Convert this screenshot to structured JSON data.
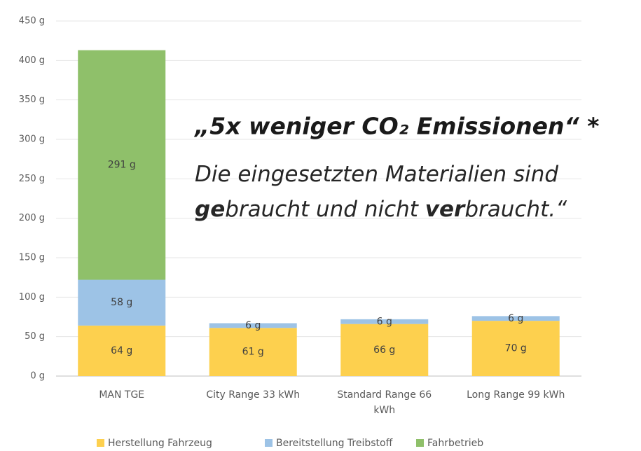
{
  "chart_data": {
    "type": "stacked_bar",
    "categories": [
      "MAN TGE",
      "City Range 33 kWh",
      "Standard Range 66 kWh",
      "Long Range 99 kWh"
    ],
    "series": [
      {
        "name": "Herstellung Fahrzeug",
        "color": "#fdd04e",
        "values": [
          64,
          61,
          66,
          70
        ],
        "value_labels": [
          "64 g",
          "61 g",
          "66 g",
          "70 g"
        ]
      },
      {
        "name": "Bereitstellung Treibstoff",
        "color": "#9dc3e6",
        "values": [
          58,
          6,
          6,
          6
        ],
        "value_labels": [
          "58 g",
          "6 g",
          "6 g",
          "6 g"
        ]
      },
      {
        "name": "Fahrbetrieb",
        "color": "#8fc06a",
        "values": [
          291,
          null,
          null,
          null
        ],
        "value_labels": [
          "291 g",
          null,
          null,
          null
        ]
      }
    ],
    "ylim": [
      0,
      450
    ],
    "yticks": [
      {
        "value": 0,
        "label": "0 g"
      },
      {
        "value": 50,
        "label": "50 g"
      },
      {
        "value": 100,
        "label": "100 g"
      },
      {
        "value": 150,
        "label": "150 g"
      },
      {
        "value": 200,
        "label": "200 g"
      },
      {
        "value": 250,
        "label": "250 g"
      },
      {
        "value": 300,
        "label": "300 g"
      },
      {
        "value": 350,
        "label": "350 g"
      },
      {
        "value": 400,
        "label": "400 g"
      },
      {
        "value": 450,
        "label": "450 g"
      }
    ],
    "grid": true,
    "legend": "bottom",
    "annotation_title": "„5x weniger CO₂ Emissionen“ *",
    "annotation_body": [
      [
        {
          "text": "Die eingesetzten Materialien sind"
        }
      ],
      [
        {
          "text": "ge",
          "bold": true
        },
        {
          "text": "braucht und nicht "
        },
        {
          "text": "ver",
          "bold": true
        },
        {
          "text": "braucht.“"
        }
      ]
    ]
  }
}
